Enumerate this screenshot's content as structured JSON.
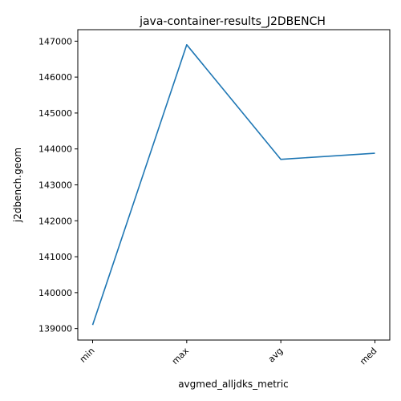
{
  "chart_data": {
    "type": "line",
    "title": "java-container-results_J2DBENCH",
    "xlabel": "avgmed_alljdks_metric",
    "ylabel": "j2dbench.geom",
    "categories": [
      "min",
      "max",
      "avg",
      "med"
    ],
    "series": [
      {
        "values": [
          139100,
          146900,
          143710,
          143880
        ]
      }
    ],
    "ylim": [
      138680,
      147320
    ],
    "yticks": [
      139000,
      140000,
      141000,
      142000,
      143000,
      144000,
      145000,
      146000,
      147000
    ],
    "grid": false,
    "colors": {
      "series": "#1f77b4"
    }
  }
}
